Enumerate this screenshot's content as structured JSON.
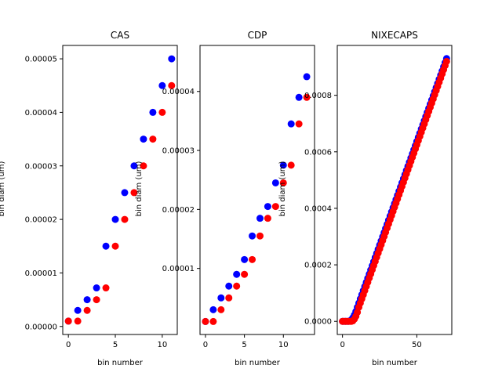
{
  "colors": {
    "series_a": "#0000ff",
    "series_b": "#ff0000"
  },
  "chart_data": [
    {
      "type": "scatter",
      "title": "CAS",
      "xlabel": "bin number",
      "ylabel": "bin diam (um)",
      "xlim": [
        -0.6,
        11.6
      ],
      "ylim": [
        -1.5e-06,
        5.25e-05
      ],
      "xticks": [
        0,
        5,
        10
      ],
      "yticks": [
        0,
        1e-05,
        2e-05,
        3e-05,
        4e-05,
        5e-05
      ],
      "xtick_labels": [
        "0",
        "5",
        "10"
      ],
      "ytick_labels": [
        "0.00000",
        "0.00001",
        "0.00002",
        "0.00003",
        "0.00004",
        "0.00005"
      ],
      "grid": false,
      "series": [
        {
          "color": "blue",
          "x": [
            0,
            1,
            2,
            3,
            4,
            5,
            6,
            7,
            8,
            9,
            10,
            11
          ],
          "y": [
            1e-06,
            3e-06,
            5e-06,
            7.2e-06,
            1.5e-05,
            2e-05,
            2.5e-05,
            3e-05,
            3.5e-05,
            4e-05,
            4.5e-05,
            5e-05
          ]
        },
        {
          "color": "red",
          "x": [
            0,
            1,
            2,
            3,
            4,
            5,
            6,
            7,
            8,
            9,
            10,
            11
          ],
          "y": [
            1e-06,
            1e-06,
            3e-06,
            5e-06,
            7.2e-06,
            1.5e-05,
            2e-05,
            2.5e-05,
            3e-05,
            3.5e-05,
            4e-05,
            4.5e-05
          ]
        }
      ]
    },
    {
      "type": "scatter",
      "title": "CDP",
      "xlabel": "bin number",
      "ylabel": "bin diam (um)",
      "xlim": [
        -0.7,
        14.0
      ],
      "ylim": [
        -1.2e-06,
        4.78e-05
      ],
      "xticks": [
        0,
        5,
        10
      ],
      "yticks": [
        1e-05,
        2e-05,
        3e-05,
        4e-05
      ],
      "xtick_labels": [
        "0",
        "5",
        "10"
      ],
      "ytick_labels": [
        "0.00001",
        "0.00002",
        "0.00003",
        "0.00004"
      ],
      "grid": false,
      "series": [
        {
          "color": "blue",
          "x": [
            0,
            1,
            2,
            3,
            4,
            5,
            6,
            7,
            8,
            9,
            10,
            11,
            12,
            13
          ],
          "y": [
            1e-06,
            3e-06,
            5e-06,
            7e-06,
            9e-06,
            1.15e-05,
            1.55e-05,
            1.85e-05,
            2.05e-05,
            2.45e-05,
            2.75e-05,
            3.45e-05,
            3.9e-05,
            4.25e-05
          ]
        },
        {
          "color": "red",
          "x": [
            0,
            1,
            2,
            3,
            4,
            5,
            6,
            7,
            8,
            9,
            10,
            11,
            12,
            13
          ],
          "y": [
            1e-06,
            1e-06,
            3e-06,
            5e-06,
            7e-06,
            9e-06,
            1.15e-05,
            1.55e-05,
            1.85e-05,
            2.05e-05,
            2.45e-05,
            2.75e-05,
            3.45e-05,
            3.9e-05
          ]
        }
      ]
    },
    {
      "type": "scatter",
      "title": "NIXECAPS",
      "xlabel": "bin number",
      "ylabel": "bin diam (um)",
      "xlim": [
        -3.5,
        73.5
      ],
      "ylim": [
        -4.65e-05,
        0.0009765
      ],
      "xticks": [
        0,
        50
      ],
      "yticks": [
        0,
        0.0002,
        0.0004,
        0.0006,
        0.0008
      ],
      "xtick_labels": [
        "0",
        "50"
      ],
      "ytick_labels": [
        "0.0000",
        "0.0002",
        "0.0004",
        "0.0006",
        "0.0008"
      ],
      "grid": false,
      "series": [
        {
          "color": "blue",
          "x_start": 0,
          "x_end": 70,
          "y_flat": 0.0,
          "flat_until": 4,
          "y_end": 0.00093,
          "curve_start": 10,
          "y_curve_start": 5e-05
        },
        {
          "color": "red",
          "x_start": 0,
          "x_end": 70,
          "y_flat": 0.0,
          "flat_until": 6,
          "y_end": 0.00092,
          "curve_start": 11,
          "y_curve_start": 5e-05
        }
      ]
    }
  ]
}
